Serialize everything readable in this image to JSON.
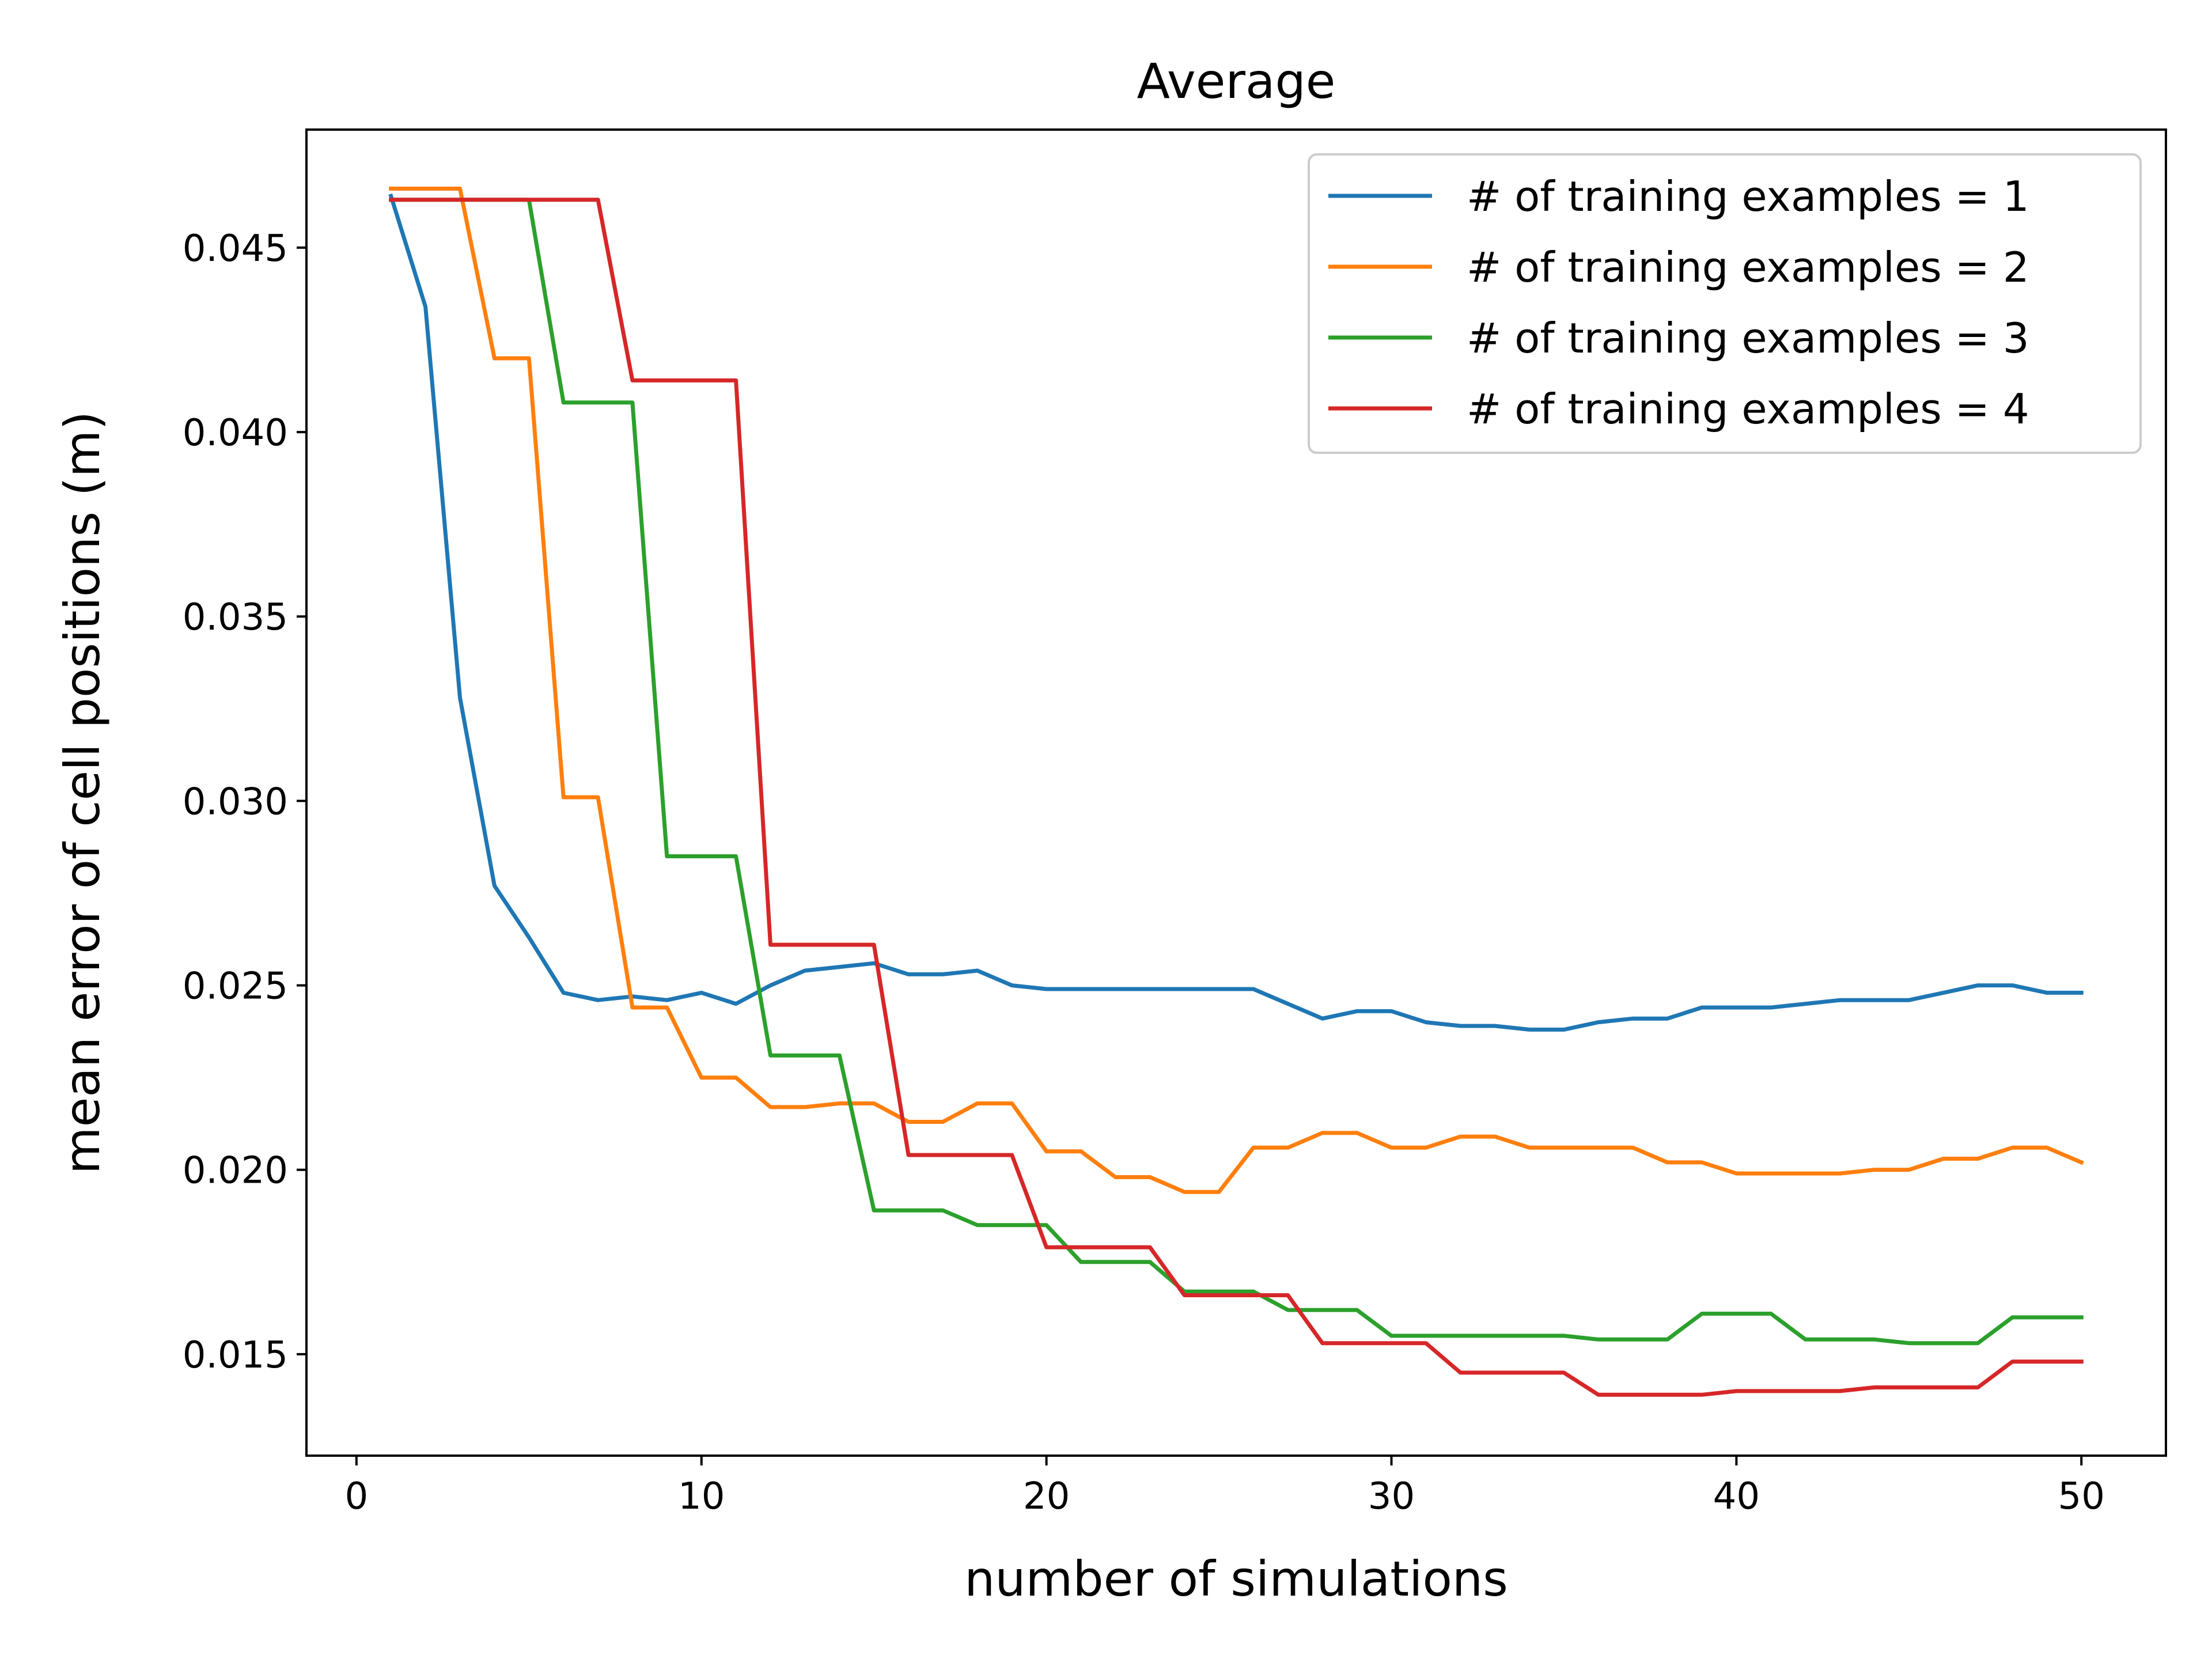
{
  "chart_data": {
    "type": "line",
    "title": "Average",
    "xlabel": "number of simulations",
    "ylabel": "mean error of cell positions (m)",
    "xlim": [
      -1.45,
      52.45
    ],
    "ylim": [
      0.01225,
      0.0482
    ],
    "xticks": [
      0,
      10,
      20,
      30,
      40,
      50
    ],
    "xtick_labels": [
      "0",
      "10",
      "20",
      "30",
      "40",
      "50"
    ],
    "yticks": [
      0.015,
      0.02,
      0.025,
      0.03,
      0.035,
      0.04,
      0.045
    ],
    "ytick_labels": [
      "0.015",
      "0.020",
      "0.025",
      "0.030",
      "0.035",
      "0.040",
      "0.045"
    ],
    "grid": false,
    "legend_position": "top-right",
    "x": [
      1,
      2,
      3,
      4,
      5,
      6,
      7,
      8,
      9,
      10,
      11,
      12,
      13,
      14,
      15,
      16,
      17,
      18,
      19,
      20,
      21,
      22,
      23,
      24,
      25,
      26,
      27,
      28,
      29,
      30,
      31,
      32,
      33,
      34,
      35,
      36,
      37,
      38,
      39,
      40,
      41,
      42,
      43,
      44,
      45,
      46,
      47,
      48,
      49,
      50
    ],
    "series": [
      {
        "name": "# of training examples = 1",
        "color": "#1f77b4",
        "values": [
          0.0464,
          0.0434,
          0.0328,
          0.0277,
          0.0263,
          0.0248,
          0.0246,
          0.0247,
          0.0246,
          0.0248,
          0.0245,
          0.025,
          0.0254,
          0.0255,
          0.0256,
          0.0253,
          0.0253,
          0.0254,
          0.025,
          0.0249,
          0.0249,
          0.0249,
          0.0249,
          0.0249,
          0.0249,
          0.0249,
          0.0245,
          0.0241,
          0.0243,
          0.0243,
          0.024,
          0.0239,
          0.0239,
          0.0238,
          0.0238,
          0.024,
          0.0241,
          0.0241,
          0.0244,
          0.0244,
          0.0244,
          0.0245,
          0.0246,
          0.0246,
          0.0246,
          0.0248,
          0.025,
          0.025,
          0.0248,
          0.0248
        ]
      },
      {
        "name": "# of training examples = 2",
        "color": "#ff7f0e",
        "values": [
          0.0466,
          0.0466,
          0.0466,
          0.042,
          0.042,
          0.0301,
          0.0301,
          0.0244,
          0.0244,
          0.0225,
          0.0225,
          0.0217,
          0.0217,
          0.0218,
          0.0218,
          0.0213,
          0.0213,
          0.0218,
          0.0218,
          0.0205,
          0.0205,
          0.0198,
          0.0198,
          0.0194,
          0.0194,
          0.0206,
          0.0206,
          0.021,
          0.021,
          0.0206,
          0.0206,
          0.0209,
          0.0209,
          0.0206,
          0.0206,
          0.0206,
          0.0206,
          0.0202,
          0.0202,
          0.0199,
          0.0199,
          0.0199,
          0.0199,
          0.02,
          0.02,
          0.0203,
          0.0203,
          0.0206,
          0.0206,
          0.0202
        ]
      },
      {
        "name": "# of training examples = 3",
        "color": "#2ca02c",
        "values": [
          0.0463,
          0.0463,
          0.0463,
          0.0463,
          0.0463,
          0.0408,
          0.0408,
          0.0408,
          0.0285,
          0.0285,
          0.0285,
          0.0231,
          0.0231,
          0.0231,
          0.0189,
          0.0189,
          0.0189,
          0.0185,
          0.0185,
          0.0185,
          0.0175,
          0.0175,
          0.0175,
          0.0167,
          0.0167,
          0.0167,
          0.0162,
          0.0162,
          0.0162,
          0.0155,
          0.0155,
          0.0155,
          0.0155,
          0.0155,
          0.0155,
          0.0154,
          0.0154,
          0.0154,
          0.0161,
          0.0161,
          0.0161,
          0.0154,
          0.0154,
          0.0154,
          0.0153,
          0.0153,
          0.0153,
          0.016,
          0.016,
          0.016
        ]
      },
      {
        "name": "# of training examples = 4",
        "color": "#d62728",
        "values": [
          0.0463,
          0.0463,
          0.0463,
          0.0463,
          0.0463,
          0.0463,
          0.0463,
          0.0414,
          0.0414,
          0.0414,
          0.0414,
          0.0261,
          0.0261,
          0.0261,
          0.0261,
          0.0204,
          0.0204,
          0.0204,
          0.0204,
          0.0179,
          0.0179,
          0.0179,
          0.0179,
          0.0166,
          0.0166,
          0.0166,
          0.0166,
          0.0153,
          0.0153,
          0.0153,
          0.0153,
          0.0145,
          0.0145,
          0.0145,
          0.0145,
          0.0139,
          0.0139,
          0.0139,
          0.0139,
          0.014,
          0.014,
          0.014,
          0.014,
          0.0141,
          0.0141,
          0.0141,
          0.0141,
          0.0148,
          0.0148,
          0.0148
        ]
      }
    ]
  }
}
